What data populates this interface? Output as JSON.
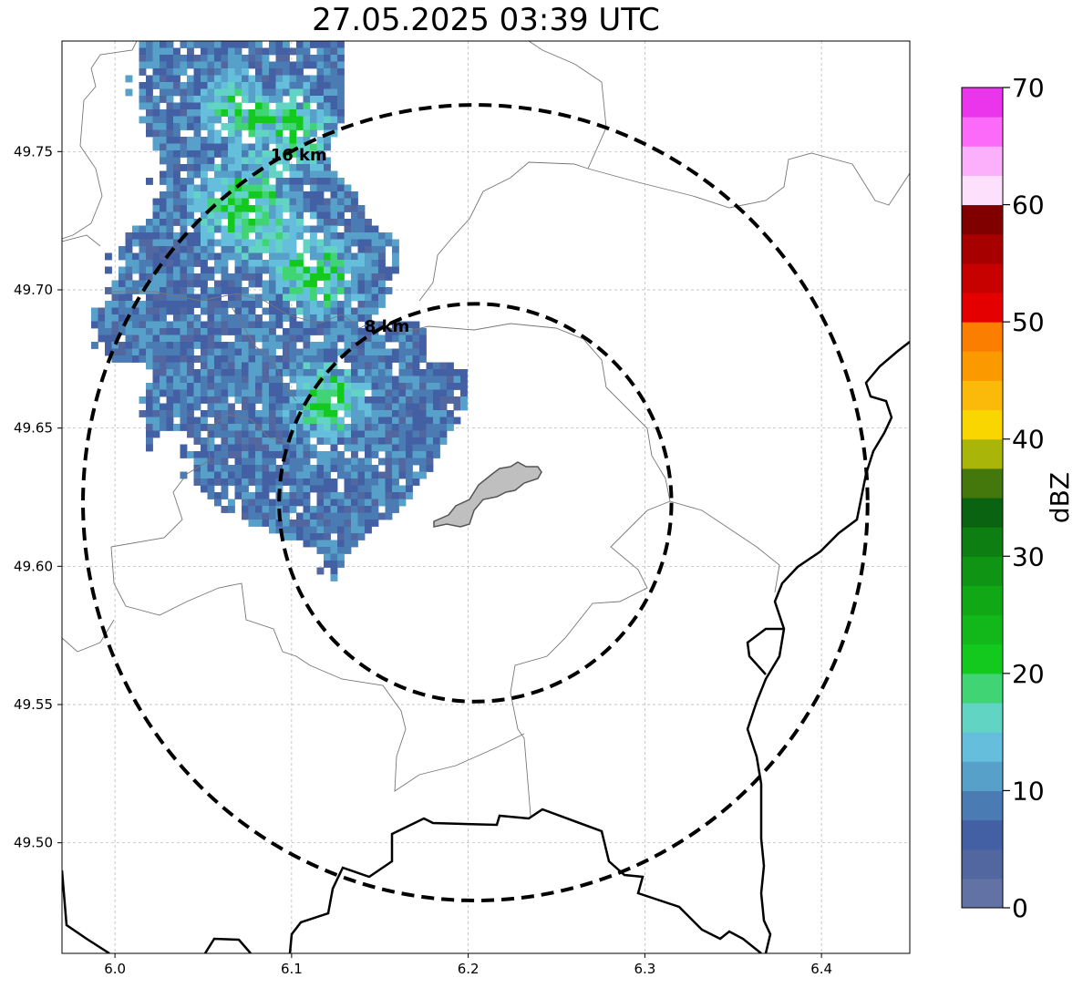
{
  "title": "27.05.2025 03:39 UTC",
  "map": {
    "lon_range": [
      5.97,
      6.45
    ],
    "lat_range": [
      49.46,
      49.79
    ],
    "x_ticks": [
      "6.0",
      "6.1",
      "6.2",
      "6.3",
      "6.4"
    ],
    "x_tick_values": [
      6.0,
      6.1,
      6.2,
      6.3,
      6.4
    ],
    "y_ticks": [
      "49.50",
      "49.55",
      "49.60",
      "49.65",
      "49.70",
      "49.75"
    ],
    "y_tick_values": [
      49.5,
      49.55,
      49.6,
      49.65,
      49.7,
      49.75
    ],
    "grid": true,
    "center": {
      "lon": 6.204,
      "lat": 49.623
    },
    "rings": [
      {
        "label": "8 km",
        "radius_km": 8
      },
      {
        "label": "16 km",
        "radius_km": 16
      }
    ],
    "colors": {
      "ring": "#000000",
      "admin_border": "#777777",
      "country_border": "#000000",
      "grid": "#b0b0b0",
      "lake_fill": "#bfbfbf",
      "lake_edge": "#555555"
    },
    "radar_echo": {
      "description_values_dbz_range": [
        0,
        22
      ],
      "dominant_dbz": [
        3,
        15
      ],
      "max_dbz": 22
    }
  },
  "colorbar": {
    "label": "dBZ",
    "min": 0,
    "max": 70,
    "ticks": [
      "0",
      "10",
      "20",
      "30",
      "40",
      "50",
      "60",
      "70"
    ],
    "tick_values": [
      0,
      10,
      20,
      30,
      40,
      50,
      60,
      70
    ],
    "step": 2.5,
    "colors": [
      "#6272a4",
      "#5266a0",
      "#4460a5",
      "#4a7bb3",
      "#57a0c9",
      "#65bfdc",
      "#62d4c4",
      "#40d474",
      "#14c91e",
      "#12b81a",
      "#11a816",
      "#0f9414",
      "#0d7e12",
      "#0a6310",
      "#45780c",
      "#aab50a",
      "#fad600",
      "#fbb90a",
      "#fa9a00",
      "#fb7e00",
      "#e50000",
      "#c70000",
      "#a70000",
      "#800000",
      "#fde1fc",
      "#fcaffb",
      "#fb6af9",
      "#ea35ed"
    ]
  }
}
